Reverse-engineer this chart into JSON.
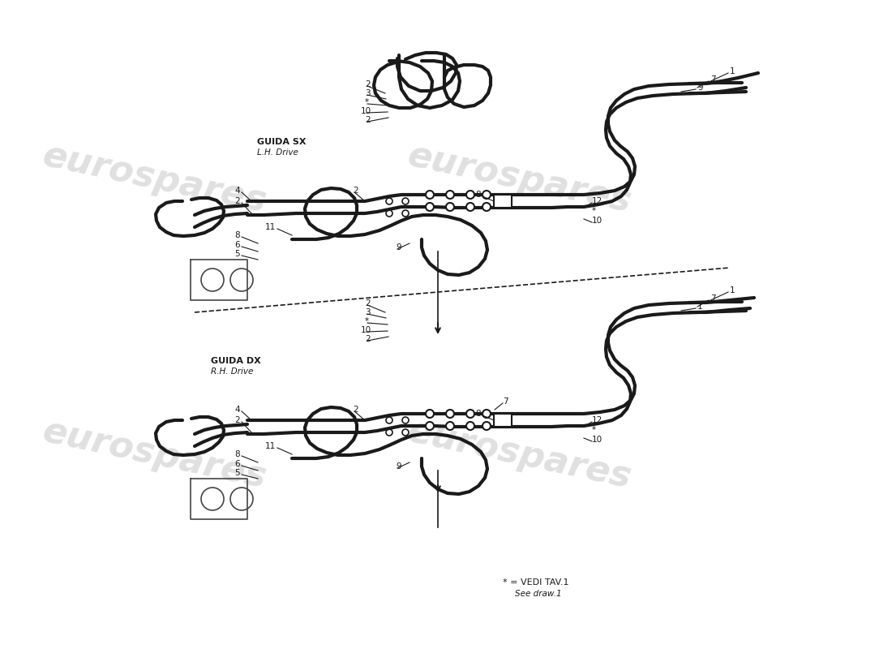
{
  "bg_color": "#ffffff",
  "line_color": "#1a1a1a",
  "wm_color": "#cccccc",
  "label_guida_sx": "GUIDA SX",
  "label_lh": "L.H. Drive",
  "label_guida_dx": "GUIDA DX",
  "label_rh": "R.H. Drive",
  "label_vedi": "* = VEDI TAV.1",
  "label_see": "See draw.1",
  "figsize": [
    11.0,
    8.0
  ],
  "dpi": 100
}
